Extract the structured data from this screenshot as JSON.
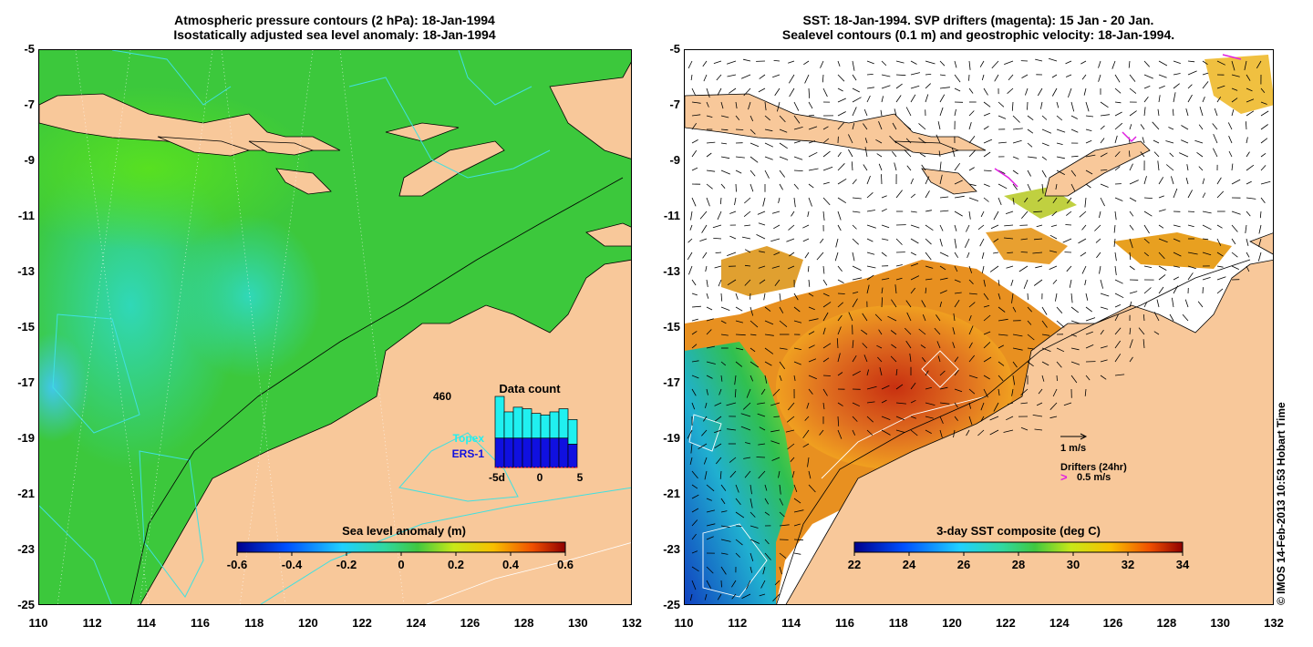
{
  "left_panel": {
    "title_line1": "Atmospheric pressure contours (2 hPa): 18-Jan-1994",
    "title_line2": "Isostatically adjusted sea level anomaly: 18-Jan-1994",
    "colorbar": {
      "label": "Sea level anomaly (m)",
      "ticks": [
        "-0.6",
        "-0.4",
        "-0.2",
        "0",
        "0.2",
        "0.4",
        "0.6"
      ]
    },
    "inset": {
      "title": "Data count",
      "max_label": "460",
      "legend_topex": "Topex",
      "legend_ers1": "ERS-1",
      "x_ticks": [
        "-5d",
        "0",
        "5"
      ],
      "topex_color": "#20f0f0",
      "ers1_color": "#1010e0",
      "topex_counts": [
        460,
        360,
        390,
        380,
        350,
        340,
        360,
        380,
        310
      ],
      "ers1_counts": [
        190,
        190,
        190,
        190,
        190,
        190,
        190,
        190,
        150
      ]
    }
  },
  "right_panel": {
    "title_line1": "SST: 18-Jan-1994. SVP drifters (magenta): 15 Jan - 20 Jan.",
    "title_line2": "Sealevel contours (0.1 m) and geostrophic velocity: 18-Jan-1994.",
    "colorbar": {
      "label": "3-day SST composite (deg C)",
      "ticks": [
        "22",
        "24",
        "26",
        "28",
        "30",
        "32",
        "34"
      ]
    },
    "vector_scale_label": "1 m/s",
    "drifters_label": "Drifters (24hr)",
    "drifter_speed_label": "0.5 m/s",
    "drifter_color": "#e020e0"
  },
  "axes": {
    "lat_ticks": [
      "-5",
      "-7",
      "-9",
      "-11",
      "-13",
      "-15",
      "-17",
      "-19",
      "-21",
      "-23",
      "-25"
    ],
    "lon_ticks": [
      "110",
      "112",
      "114",
      "116",
      "118",
      "120",
      "122",
      "124",
      "126",
      "128",
      "130",
      "132"
    ]
  },
  "colors": {
    "land": "#f8c89a",
    "ocean_green": "#3cc83c",
    "ocean_cyan": "#30d8a8"
  },
  "copyright": "© IMOS 14-Feb-2013 10:53 Hobart Time"
}
